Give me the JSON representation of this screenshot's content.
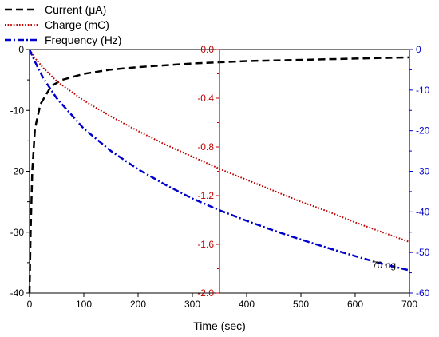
{
  "chart_data": {
    "type": "line",
    "xlabel": "Time (sec)",
    "xlim": [
      0,
      700
    ],
    "x_ticks": [
      0,
      100,
      200,
      300,
      400,
      500,
      600,
      700
    ],
    "axes": {
      "left": {
        "range": [
          -40,
          0
        ],
        "ticks": [
          0,
          -10,
          -20,
          -30,
          -40
        ],
        "color": "#000000"
      },
      "middle": {
        "range": [
          -2.0,
          0.0
        ],
        "ticks": [
          "0.0",
          "-0.4",
          "-0.8",
          "-1.2",
          "-1.6",
          "-2.0"
        ],
        "color": "#c00000",
        "at_x": 350
      },
      "right": {
        "range": [
          -60,
          0
        ],
        "ticks": [
          0,
          -10,
          -20,
          -30,
          -40,
          -50,
          -60
        ],
        "color": "#0000cc"
      }
    },
    "series": [
      {
        "name": "Current (μA)",
        "axis": "left",
        "color": "#000000",
        "style": "dash",
        "x": [
          0,
          2,
          5,
          10,
          20,
          40,
          60,
          100,
          150,
          200,
          300,
          400,
          500,
          600,
          700
        ],
        "y": [
          -40,
          -30,
          -20,
          -13,
          -9,
          -6,
          -5,
          -4,
          -3.3,
          -2.9,
          -2.3,
          -1.9,
          -1.7,
          -1.5,
          -1.3
        ]
      },
      {
        "name": "Charge (mC)",
        "axis": "middle",
        "color": "#c00000",
        "style": "dot",
        "x": [
          0,
          10,
          25,
          50,
          100,
          150,
          200,
          250,
          300,
          350,
          400,
          450,
          500,
          550,
          600,
          650,
          700
        ],
        "y": [
          0,
          -0.07,
          -0.15,
          -0.26,
          -0.42,
          -0.55,
          -0.67,
          -0.78,
          -0.88,
          -0.98,
          -1.07,
          -1.16,
          -1.25,
          -1.33,
          -1.42,
          -1.5,
          -1.58
        ]
      },
      {
        "name": "Frequency (Hz)",
        "axis": "right",
        "color": "#0000cc",
        "style": "dashdot",
        "x": [
          0,
          10,
          25,
          50,
          100,
          150,
          200,
          250,
          300,
          350,
          400,
          450,
          500,
          550,
          600,
          650,
          700
        ],
        "y": [
          0,
          -3,
          -7,
          -12,
          -19.5,
          -25,
          -29.5,
          -33.3,
          -36.7,
          -39.6,
          -42.2,
          -44.6,
          -46.8,
          -48.9,
          -50.9,
          -52.8,
          -54.4
        ]
      }
    ],
    "legend": {
      "placement": "top-left"
    },
    "annotation": "70 ng"
  }
}
